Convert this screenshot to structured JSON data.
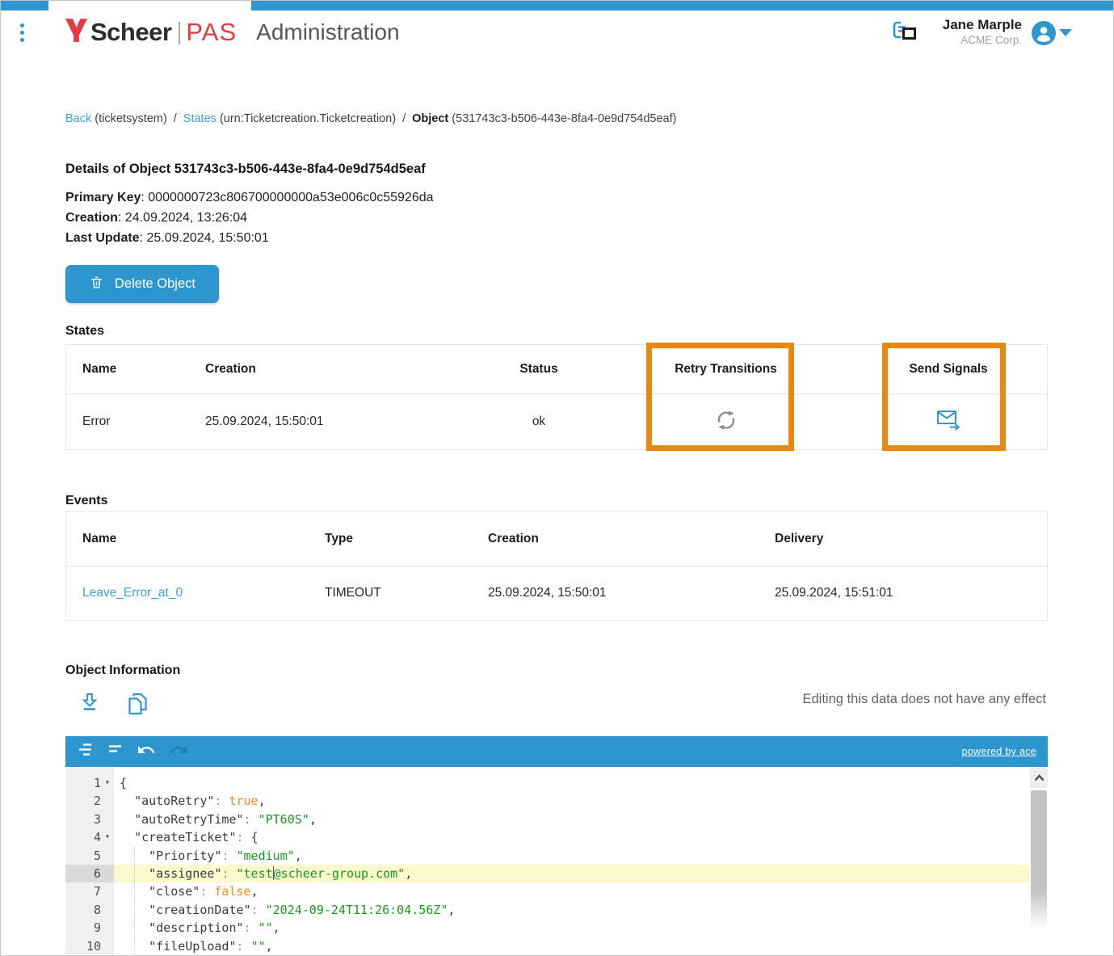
{
  "header": {
    "brand_name": "Scheer",
    "brand_suffix": "PAS",
    "app_title": "Administration",
    "user_name": "Jane Marple",
    "user_org": "ACME Corp."
  },
  "breadcrumb": {
    "back_label": "Back",
    "back_ctx": "(ticketsystem)",
    "sep": "/",
    "states_label": "States",
    "states_ctx": "(urn:Ticketcreation.Ticketcreation)",
    "object_label": "Object",
    "object_ctx": "(531743c3-b506-443e-8fa4-0e9d754d5eaf)"
  },
  "details": {
    "title": "Details of Object 531743c3-b506-443e-8fa4-0e9d754d5eaf",
    "fields": [
      {
        "label": "Primary Key",
        "value": ": 0000000723c806700000000a53e006c0c55926da"
      },
      {
        "label": "Creation",
        "value": ": 24.09.2024, 13:26:04"
      },
      {
        "label": "Last Update",
        "value": ": 25.09.2024, 15:50:01"
      }
    ]
  },
  "actions": {
    "delete_label": "Delete Object"
  },
  "states": {
    "title": "States",
    "columns": [
      "Name",
      "Creation",
      "Status",
      "Retry Transitions",
      "Send Signals"
    ],
    "rows": [
      {
        "name": "Error",
        "creation": "25.09.2024, 15:50:01",
        "status": "ok"
      }
    ]
  },
  "events": {
    "title": "Events",
    "columns": [
      "Name",
      "Type",
      "Creation",
      "Delivery"
    ],
    "rows": [
      {
        "name": "Leave_Error_at_0",
        "type": "TIMEOUT",
        "creation": "25.09.2024, 15:50:01",
        "delivery": "25.09.2024, 15:51:01"
      }
    ]
  },
  "object_info": {
    "title": "Object Information",
    "note": "Editing this data does not have any effect",
    "powered_by": "powered by ace"
  },
  "editor": {
    "active_line": 6,
    "fold_lines": [
      1,
      4
    ],
    "fold_glyph": "▾",
    "lines": [
      [
        [
          "{",
          "p"
        ]
      ],
      [
        [
          "  ",
          "p"
        ],
        [
          "\"autoRetry\"",
          "k"
        ],
        [
          ":",
          "c"
        ],
        [
          " ",
          "p"
        ],
        [
          "true",
          "b"
        ],
        [
          ",",
          "p"
        ]
      ],
      [
        [
          "  ",
          "p"
        ],
        [
          "\"autoRetryTime\"",
          "k"
        ],
        [
          ":",
          "c"
        ],
        [
          " ",
          "p"
        ],
        [
          "\"PT60S\"",
          "s"
        ],
        [
          ",",
          "p"
        ]
      ],
      [
        [
          "  ",
          "p"
        ],
        [
          "\"createTicket\"",
          "k"
        ],
        [
          ":",
          "c"
        ],
        [
          " ",
          "p"
        ],
        [
          "{",
          "p"
        ]
      ],
      [
        [
          "    ",
          "p"
        ],
        [
          "\"Priority\"",
          "k"
        ],
        [
          ":",
          "c"
        ],
        [
          " ",
          "p"
        ],
        [
          "\"medium\"",
          "s"
        ],
        [
          ",",
          "p"
        ]
      ],
      [
        [
          "    ",
          "p"
        ],
        [
          "\"assignee\"",
          "k"
        ],
        [
          ":",
          "c"
        ],
        [
          " ",
          "p"
        ],
        [
          "\"test",
          "s"
        ],
        [
          "",
          "cur"
        ],
        [
          "@scheer-group.com\"",
          "s"
        ],
        [
          ",",
          "p"
        ]
      ],
      [
        [
          "    ",
          "p"
        ],
        [
          "\"close\"",
          "k"
        ],
        [
          ":",
          "c"
        ],
        [
          " ",
          "p"
        ],
        [
          "false",
          "b"
        ],
        [
          ",",
          "p"
        ]
      ],
      [
        [
          "    ",
          "p"
        ],
        [
          "\"creationDate\"",
          "k"
        ],
        [
          ":",
          "c"
        ],
        [
          " ",
          "p"
        ],
        [
          "\"2024-09-24T11:26:04.56Z\"",
          "s"
        ],
        [
          ",",
          "p"
        ]
      ],
      [
        [
          "    ",
          "p"
        ],
        [
          "\"description\"",
          "k"
        ],
        [
          ":",
          "c"
        ],
        [
          " ",
          "p"
        ],
        [
          "\"\"",
          "s"
        ],
        [
          ",",
          "p"
        ]
      ],
      [
        [
          "    ",
          "p"
        ],
        [
          "\"fileUpload\"",
          "k"
        ],
        [
          ":",
          "c"
        ],
        [
          " ",
          "p"
        ],
        [
          "\"\"",
          "s"
        ],
        [
          ",",
          "p"
        ]
      ]
    ]
  },
  "colors": {
    "accent": "#2e96ce",
    "annotation": "#e8890e",
    "link": "#3d9fd6",
    "red": "#e63a41",
    "green": "#18991f",
    "orange": "#f08b21",
    "activeline": "#fcf9ce"
  }
}
